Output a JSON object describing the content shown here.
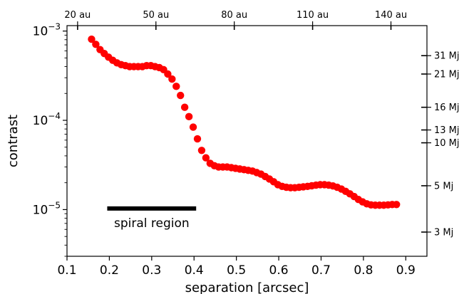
{
  "chart_data": {
    "type": "scatter",
    "title": "",
    "xlabel": "separation [arcsec]",
    "ylabel": "contrast",
    "xlim": [
      0.1,
      0.95
    ],
    "ylim": [
      3e-06,
      0.00115
    ],
    "yscale": "log",
    "grid": false,
    "legend": "none",
    "x_ticks": [
      0.1,
      0.2,
      0.3,
      0.4,
      0.5,
      0.6,
      0.7,
      0.8,
      0.9
    ],
    "x_tick_labels": [
      "0.1",
      "0.2",
      "0.3",
      "0.4",
      "0.5",
      "0.6",
      "0.7",
      "0.8",
      "0.9"
    ],
    "y_ticks": [
      {
        "value": 1e-05,
        "mantissa": "10",
        "exponent": "−5"
      },
      {
        "value": 0.0001,
        "mantissa": "10",
        "exponent": "−4"
      },
      {
        "value": 0.001,
        "mantissa": "10",
        "exponent": "−3"
      }
    ],
    "top_axis": {
      "label": "",
      "ticks": [
        {
          "x": 0.125,
          "label": "20 au"
        },
        {
          "x": 0.31,
          "label": "50 au"
        },
        {
          "x": 0.495,
          "label": "80 au"
        },
        {
          "x": 0.68,
          "label": "110 au"
        },
        {
          "x": 0.865,
          "label": "140 au"
        }
      ]
    },
    "right_axis": {
      "label": "",
      "ticks": [
        {
          "y": 0.00053,
          "label": "31 Mj"
        },
        {
          "y": 0.00033,
          "label": "21 Mj"
        },
        {
          "y": 0.00014,
          "label": "16 Mj"
        },
        {
          "y": 7.8e-05,
          "label": "13 Mj"
        },
        {
          "y": 5.6e-05,
          "label": "10 Mj"
        },
        {
          "y": 1.85e-05,
          "label": "5 Mj"
        },
        {
          "y": 5.6e-06,
          "label": "3 Mj"
        }
      ]
    },
    "annotations": [
      {
        "text": "spiral region",
        "x0": 0.195,
        "x1": 0.405,
        "y": 1.03e-05
      }
    ],
    "series": [
      {
        "color": "#ff0000",
        "marker": "circle",
        "x": [
          0.158,
          0.168,
          0.178,
          0.188,
          0.198,
          0.208,
          0.218,
          0.228,
          0.238,
          0.248,
          0.258,
          0.268,
          0.278,
          0.288,
          0.298,
          0.308,
          0.318,
          0.328,
          0.338,
          0.348,
          0.358,
          0.368,
          0.378,
          0.388,
          0.398,
          0.408,
          0.418,
          0.428,
          0.438,
          0.448,
          0.458,
          0.468,
          0.478,
          0.488,
          0.498,
          0.508,
          0.518,
          0.528,
          0.538,
          0.548,
          0.558,
          0.568,
          0.578,
          0.588,
          0.598,
          0.608,
          0.618,
          0.628,
          0.638,
          0.648,
          0.658,
          0.668,
          0.678,
          0.688,
          0.698,
          0.708,
          0.718,
          0.728,
          0.738,
          0.748,
          0.758,
          0.768,
          0.778,
          0.788,
          0.798,
          0.808,
          0.818,
          0.828,
          0.838,
          0.848,
          0.858,
          0.868,
          0.878
        ],
        "y": [
          0.00081,
          0.00071,
          0.00062,
          0.00056,
          0.00051,
          0.00047,
          0.00044,
          0.00042,
          0.00041,
          0.0004,
          0.0004,
          0.0004,
          0.0004,
          0.00041,
          0.00041,
          0.0004,
          0.00039,
          0.00037,
          0.00033,
          0.00029,
          0.00024,
          0.00019,
          0.00014,
          0.00011,
          8.4e-05,
          6.2e-05,
          4.6e-05,
          3.8e-05,
          3.3e-05,
          3.1e-05,
          3e-05,
          3e-05,
          3e-05,
          2.95e-05,
          2.9e-05,
          2.85e-05,
          2.8e-05,
          2.75e-05,
          2.7e-05,
          2.6e-05,
          2.5e-05,
          2.35e-05,
          2.2e-05,
          2.05e-05,
          1.9e-05,
          1.82e-05,
          1.78e-05,
          1.76e-05,
          1.76e-05,
          1.78e-05,
          1.8e-05,
          1.82e-05,
          1.85e-05,
          1.88e-05,
          1.9e-05,
          1.9e-05,
          1.88e-05,
          1.84e-05,
          1.78e-05,
          1.7e-05,
          1.6e-05,
          1.5e-05,
          1.4e-05,
          1.3e-05,
          1.22e-05,
          1.16e-05,
          1.13e-05,
          1.12e-05,
          1.12e-05,
          1.12e-05,
          1.13e-05,
          1.14e-05,
          1.14e-05
        ]
      }
    ]
  }
}
